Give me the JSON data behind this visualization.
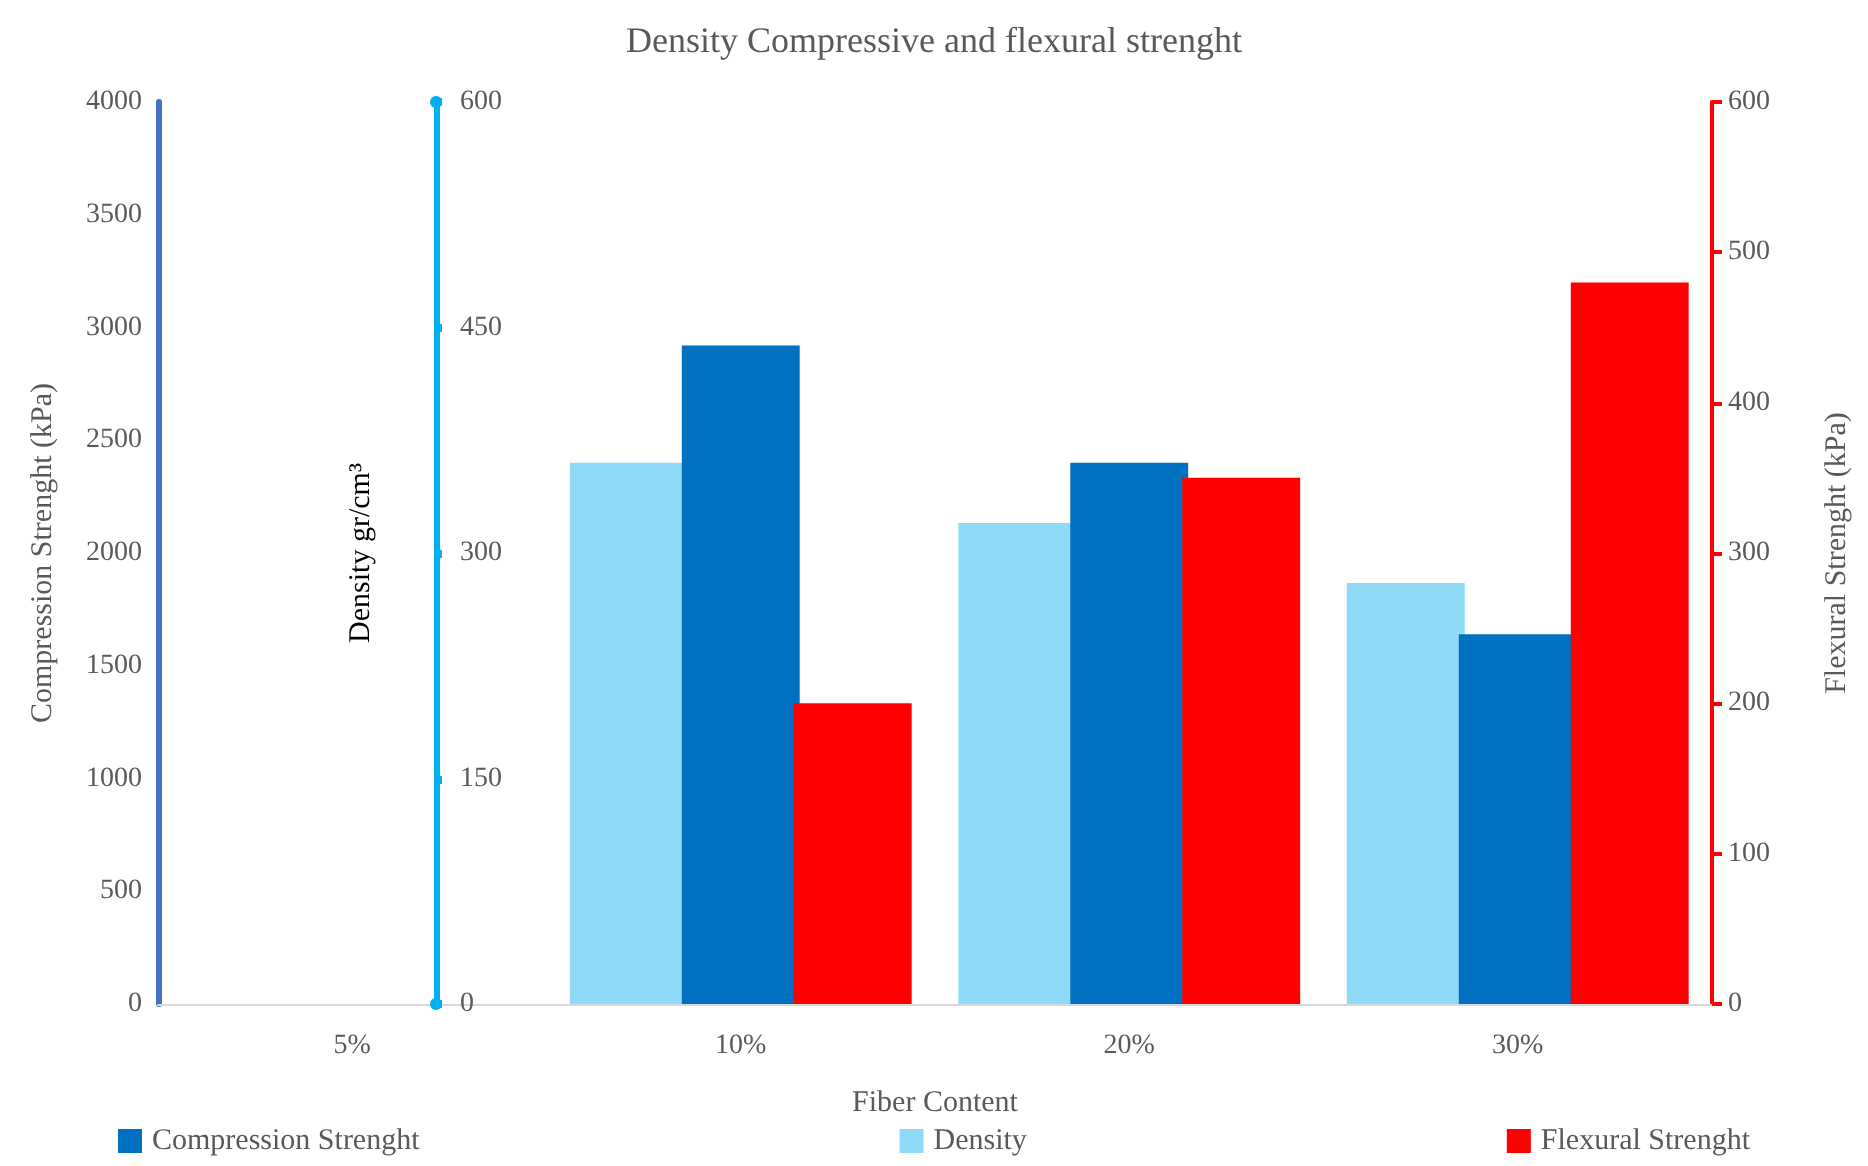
{
  "chart_data": {
    "type": "bar",
    "title": "Density Compressive and flexural strenght",
    "xlabel": "Fiber Content",
    "ylabel": "Compression Strenght (kPa)",
    "y2label": "Density gr/cm³",
    "y3label": "Flexural Strenght (kPa)",
    "categories": [
      "5%",
      "10%",
      "20%",
      "30%"
    ],
    "series": [
      {
        "name": "Density",
        "color": "#8fdaf6",
        "axis": "y2",
        "values": [
          null,
          360,
          320,
          280
        ]
      },
      {
        "name": "Compression Strenght",
        "color": "#0070c0",
        "values": [
          null,
          2920,
          2400,
          1640
        ]
      },
      {
        "name": "Flexural Strenght",
        "color": "#ff0000",
        "axis": "y3",
        "values": [
          null,
          200,
          350,
          480
        ]
      }
    ],
    "ylim": [
      0,
      4000
    ],
    "yticks": [
      0,
      500,
      1000,
      1500,
      2000,
      2500,
      3000,
      3500,
      4000
    ],
    "y2lim": [
      0,
      600
    ],
    "y2ticks": [
      0,
      150,
      300,
      450,
      600
    ],
    "y3lim": [
      0,
      600
    ],
    "y3ticks": [
      0,
      100,
      200,
      300,
      400,
      500,
      600
    ],
    "grid": false,
    "legend": "bottom"
  }
}
